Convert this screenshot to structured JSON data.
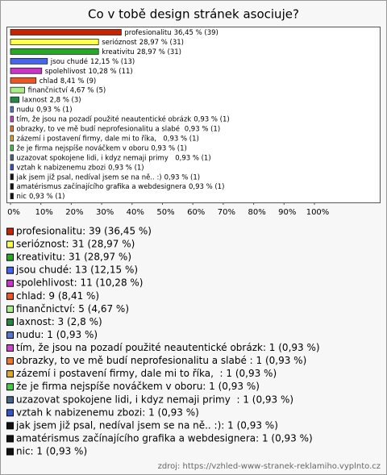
{
  "chart_data": {
    "type": "hbar",
    "title": "Co v tobě design stránek asociuje?",
    "categories": [
      "profesionalitu",
      "serióznost",
      "kreativitu",
      "jsou chudé",
      "spolehlivost",
      "chlad",
      "finančnictví",
      "laxnost",
      "nudu",
      "tím, že jsou na pozadí použité neautentické obrázk",
      "obrazky, to ve mě budí neprofesionalitu a slabé ",
      "zázemí i postavení firmy, dale mi to říka,  ",
      "že je firma nejspíše nováčkem v oboru",
      "uzazovat spokojene lidi, i kdyz nemaji primy  ",
      "vztah k nabizenemu zbozi",
      "jak jsem již psal, nedíval jsem se na ně.. :)",
      "amatérismus začínajícího grafika a webdesignera",
      "nic"
    ],
    "values": [
      36.45,
      28.97,
      28.97,
      12.15,
      10.28,
      8.41,
      4.67,
      2.8,
      0.93,
      0.93,
      0.93,
      0.93,
      0.93,
      0.93,
      0.93,
      0.93,
      0.93,
      0.93
    ],
    "value_labels": [
      "36,45 % (39)",
      "28,97 % (31)",
      "28,97 % (31)",
      "12,15 % (13)",
      "10,28 % (11)",
      "8,41 % (9)",
      "4,67 % (5)",
      "2,8 % (3)",
      "0,93 % (1)",
      "0,93 % (1)",
      "0,93 % (1)",
      "0,93 % (1)",
      "0,93 % (1)",
      "0,93 % (1)",
      "0,93 % (1)",
      "0,93 % (1)",
      "0,93 % (1)",
      "0,93 % (1)"
    ],
    "colors": [
      "#cc2200",
      "#ffff44",
      "#22aa22",
      "#4466ee",
      "#cc33cc",
      "#ee5522",
      "#aaee88",
      "#228844",
      "#5577cc",
      "#cc44cc",
      "#ee7722",
      "#ddaa22",
      "#44cc44",
      "#446688",
      "#3355cc",
      "#111111",
      "#111111",
      "#111111"
    ],
    "xlim": [
      0,
      100
    ],
    "xticks": [
      {
        "value": 0,
        "label": "0%"
      },
      {
        "value": 10,
        "label": "10%"
      },
      {
        "value": 20,
        "label": "20%"
      },
      {
        "value": 30,
        "label": "30%"
      },
      {
        "value": 40,
        "label": "40%"
      },
      {
        "value": 50,
        "label": "50%"
      },
      {
        "value": 60,
        "label": "60%"
      },
      {
        "value": 70,
        "label": "70%"
      },
      {
        "value": 80,
        "label": "80%"
      },
      {
        "value": 90,
        "label": "90%"
      },
      {
        "value": 100,
        "label": "100%"
      }
    ],
    "legend": [
      "profesionalitu: 39 (36,45 %)",
      "serióznost: 31 (28,97 %)",
      "kreativitu: 31 (28,97 %)",
      "jsou chudé: 13 (12,15 %)",
      "spolehlivost: 11 (10,28 %)",
      "chlad: 9 (8,41 %)",
      "finančnictví: 5 (4,67 %)",
      "laxnost: 3 (2,8 %)",
      "nudu: 1 (0,93 %)",
      "tím, že jsou na pozadí použité neautentické obrázk: 1 (0,93 %)",
      "obrazky, to ve mě budí neprofesionalitu a slabé : 1 (0,93 %)",
      "zázemí i postavení firmy, dale mi to říka,  : 1 (0,93 %)",
      "že je firma nejspíše nováčkem v oboru: 1 (0,93 %)",
      "uzazovat spokojene lidi, i kdyz nemaji primy  : 1 (0,93 %)",
      "vztah k nabizenemu zbozi: 1 (0,93 %)",
      "jak jsem již psal, nedíval jsem se na ně.. :): 1 (0,93 %)",
      "amatérismus začínajícího grafika a webdesignera: 1 (0,93 %)",
      "nic: 1 (0,93 %)"
    ],
    "source": "zdroj: https://vzhled-www-stranek-reklamiho.vyplnto.cz"
  }
}
